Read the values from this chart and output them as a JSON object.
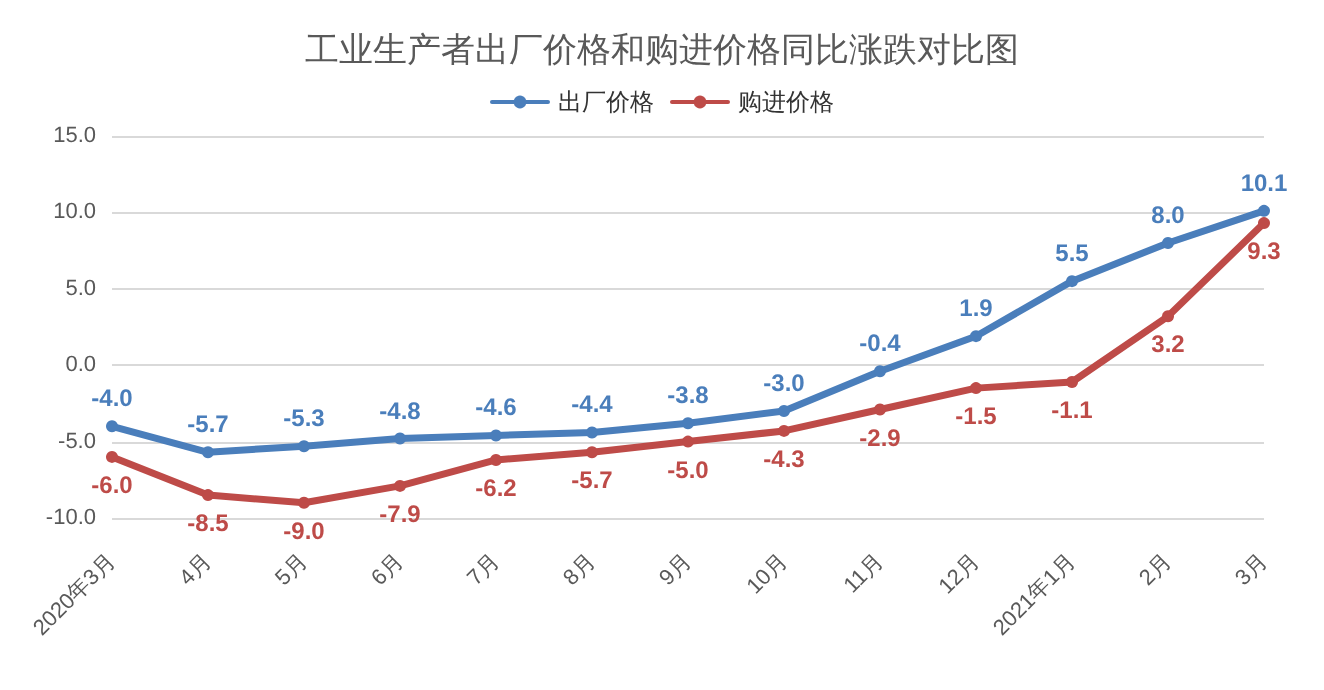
{
  "chart_data": {
    "type": "line",
    "title": "工业生产者出厂价格和购进价格同比涨跌对比图",
    "categories": [
      "2020年3月",
      "4月",
      "5月",
      "6月",
      "7月",
      "8月",
      "9月",
      "10月",
      "11月",
      "12月",
      "2021年1月",
      "2月",
      "3月"
    ],
    "series": [
      {
        "name": "出厂价格",
        "color": "#4a7ebb",
        "values": [
          -4.0,
          -5.7,
          -5.3,
          -4.8,
          -4.6,
          -4.4,
          -3.8,
          -3.0,
          -0.4,
          1.9,
          5.5,
          8.0,
          10.1
        ],
        "value_labels": [
          "-4.0",
          "-5.7",
          "-5.3",
          "-4.8",
          "-4.6",
          "-4.4",
          "-3.8",
          "-3.0",
          "-0.4",
          "1.9",
          "5.5",
          "8.0",
          "10.1"
        ]
      },
      {
        "name": "购进价格",
        "color": "#be4b48",
        "values": [
          -6.0,
          -8.5,
          -9.0,
          -7.9,
          -6.2,
          -5.7,
          -5.0,
          -4.3,
          -2.9,
          -1.5,
          -1.1,
          3.2,
          9.3
        ],
        "value_labels": [
          "-6.0",
          "-8.5",
          "-9.0",
          "-7.9",
          "-6.2",
          "-5.7",
          "-5.0",
          "-4.3",
          "-2.9",
          "-1.5",
          "-1.1",
          "3.2",
          "9.3"
        ]
      }
    ],
    "ylim": [
      -10,
      15
    ],
    "yticks": [
      {
        "value": -10,
        "label": "-10.0"
      },
      {
        "value": -5,
        "label": "-5.0"
      },
      {
        "value": 0,
        "label": "0.0"
      },
      {
        "value": 5,
        "label": "5.0"
      },
      {
        "value": 10,
        "label": "10.0"
      },
      {
        "value": 15,
        "label": "15.0"
      }
    ],
    "grid": "y",
    "legend": "top",
    "marker": "circle",
    "line_style": "solid"
  }
}
